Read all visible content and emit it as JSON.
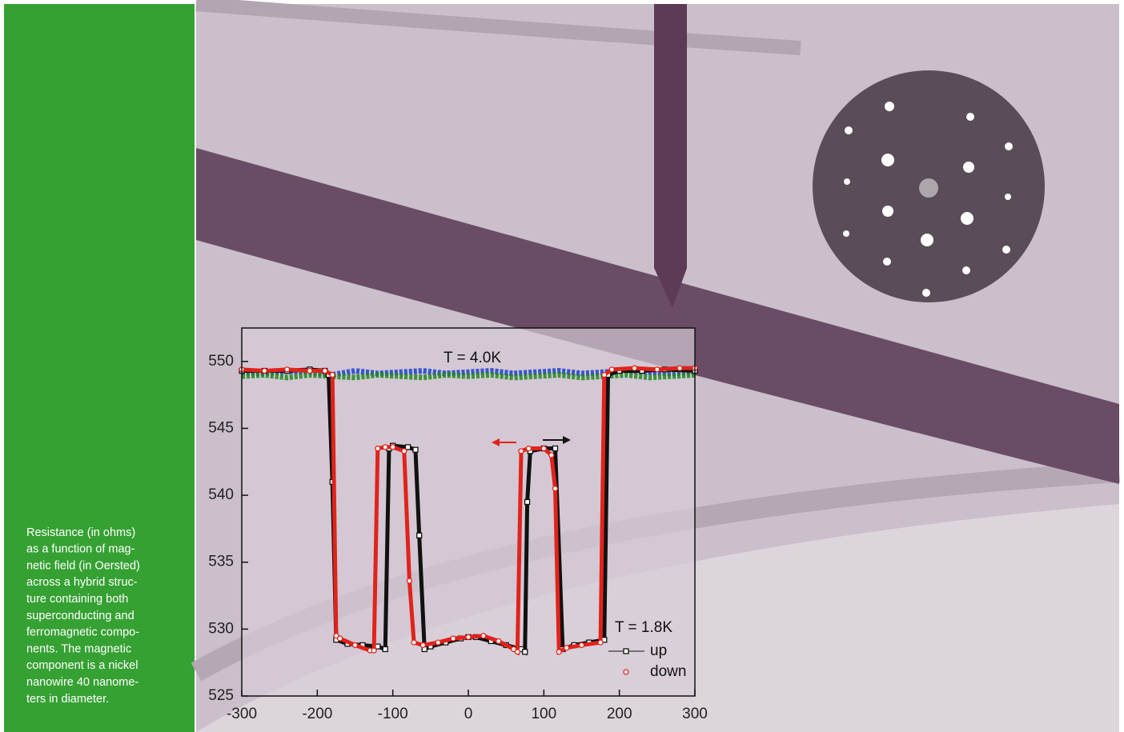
{
  "caption": [
    "Resistance (in ohms)",
    "as a function of mag-",
    "netic field (in Oersted)",
    "across a hybrid struc-",
    "ture containing both",
    "superconducting and",
    "ferromagnetic compo-",
    "nents. The magnetic",
    "component is a nickel",
    "nanowire 40 nanome-",
    "ters in diameter."
  ],
  "chart_data": {
    "type": "line",
    "annotations": [
      "T = 4.0K",
      "T = 1.8K"
    ],
    "xlim": [
      -300,
      300
    ],
    "xticks": [
      -300,
      -200,
      -100,
      0,
      100,
      200,
      300
    ],
    "ylim": [
      525,
      552.5
    ],
    "yticks": [
      525,
      530,
      535,
      540,
      545,
      550
    ],
    "series": [
      {
        "color": "#1c3fd0",
        "marker": "none",
        "x": [
          -300,
          -270,
          -240,
          -210,
          -180,
          -150,
          -120,
          -90,
          -60,
          -30,
          0,
          30,
          60,
          90,
          120,
          150,
          180,
          210,
          240,
          270,
          300
        ],
        "values": [
          549.2,
          549.1,
          549.3,
          549.2,
          549.0,
          549.3,
          549.1,
          549.2,
          549.3,
          549.1,
          549.2,
          549.3,
          549.1,
          549.2,
          549.3,
          549.1,
          549.2,
          549.3,
          549.2,
          549.1,
          549.2
        ]
      },
      {
        "color": "#1f8a1f",
        "marker": "none",
        "x": [
          -300,
          -270,
          -240,
          -210,
          -180,
          -150,
          -120,
          -90,
          -60,
          -30,
          0,
          30,
          60,
          90,
          120,
          150,
          180,
          210,
          240,
          270,
          300
        ],
        "values": [
          548.9,
          549.0,
          548.8,
          549.0,
          548.9,
          548.8,
          549.0,
          548.9,
          548.8,
          549.0,
          548.9,
          549.0,
          548.8,
          548.9,
          549.0,
          548.8,
          548.9,
          549.0,
          548.8,
          548.9,
          549.0
        ]
      },
      {
        "name": "up",
        "color": "#111111",
        "marker": "square",
        "x": [
          -300,
          -270,
          -240,
          -210,
          -190,
          -185,
          -180,
          -175,
          -160,
          -140,
          -120,
          -110,
          -105,
          -100,
          -80,
          -70,
          -65,
          -58,
          -50,
          -30,
          -10,
          0,
          10,
          30,
          50,
          70,
          75,
          78,
          82,
          100,
          115,
          125,
          140,
          160,
          180,
          185,
          200,
          230,
          260,
          300
        ],
        "values": [
          549.3,
          549.3,
          549.3,
          549.4,
          549.3,
          549.0,
          541.0,
          529.2,
          528.9,
          528.8,
          528.7,
          528.5,
          543.5,
          543.7,
          543.6,
          543.4,
          537.0,
          528.5,
          528.7,
          529.0,
          529.3,
          529.4,
          529.4,
          529.1,
          528.8,
          528.5,
          528.3,
          539.5,
          543.3,
          543.5,
          543.5,
          528.5,
          528.8,
          529.0,
          529.2,
          549.0,
          549.3,
          549.3,
          549.4,
          549.3
        ]
      },
      {
        "name": "down",
        "color": "#e0231c",
        "marker": "circle",
        "x": [
          -300,
          -270,
          -240,
          -210,
          -190,
          -180,
          -175,
          -170,
          -150,
          -130,
          -125,
          -120,
          -110,
          -100,
          -85,
          -78,
          -72,
          -60,
          -40,
          -20,
          0,
          20,
          40,
          60,
          65,
          70,
          80,
          100,
          110,
          115,
          120,
          130,
          150,
          175,
          180,
          190,
          220,
          250,
          280,
          300
        ],
        "values": [
          549.4,
          549.3,
          549.4,
          549.3,
          549.3,
          549.0,
          529.5,
          529.3,
          528.8,
          528.4,
          528.4,
          543.5,
          543.6,
          543.6,
          543.3,
          533.6,
          529.0,
          528.8,
          529.0,
          529.3,
          529.4,
          529.5,
          529.1,
          528.5,
          528.3,
          543.3,
          543.5,
          543.5,
          543.0,
          540.5,
          528.3,
          528.6,
          528.8,
          529.0,
          549.0,
          549.4,
          549.5,
          549.4,
          549.5,
          549.5
        ]
      }
    ]
  }
}
